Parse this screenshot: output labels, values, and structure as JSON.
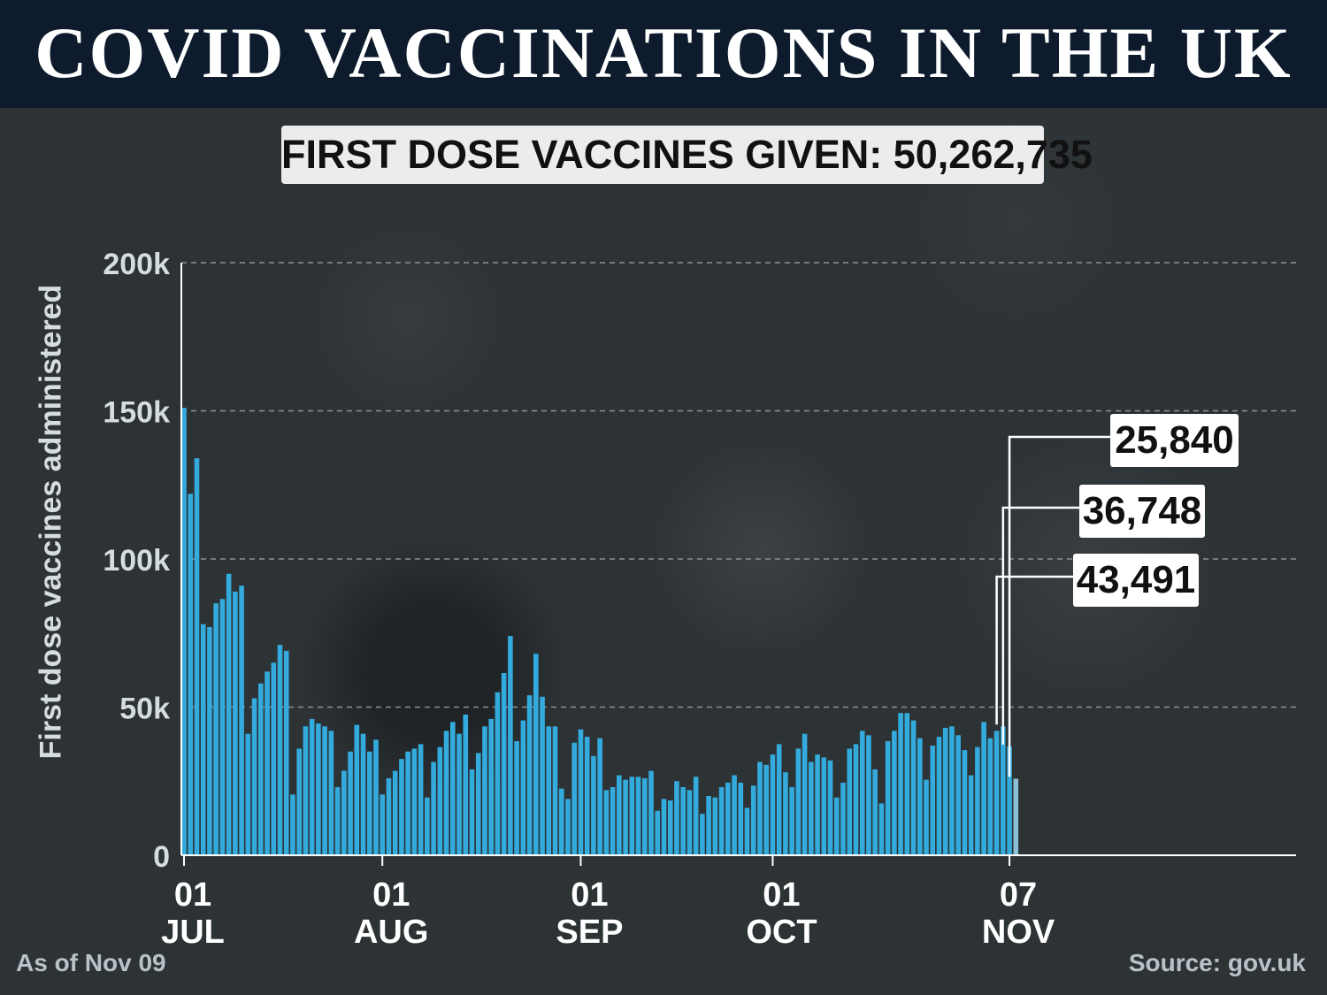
{
  "header": {
    "title": "COVID VACCINATIONS IN THE UK",
    "subtitle": "FIRST DOSE VACCINES GIVEN: 50,262,735"
  },
  "footer": {
    "as_of": "As of Nov 09",
    "source": "Source: gov.uk"
  },
  "colors": {
    "bar": "#33abdd",
    "bar_last": "#8bbfd6",
    "header_bg": "#0d1b2d",
    "gridline": "#8a9196",
    "axis": "#ffffff"
  },
  "chart_data": {
    "type": "bar",
    "ylabel": "First dose vaccines administered",
    "ylim": [
      0,
      200000
    ],
    "grid": true,
    "yticks": [
      {
        "value": 0,
        "label": "0"
      },
      {
        "value": 50000,
        "label": "50k"
      },
      {
        "value": 100000,
        "label": "100k"
      },
      {
        "value": 150000,
        "label": "150k"
      },
      {
        "value": 200000,
        "label": "200k"
      }
    ],
    "xticks": [
      {
        "date": "2021-07-01",
        "day": "01",
        "month": "JUL"
      },
      {
        "date": "2021-08-01",
        "day": "01",
        "month": "AUG"
      },
      {
        "date": "2021-09-01",
        "day": "01",
        "month": "SEP"
      },
      {
        "date": "2021-10-01",
        "day": "01",
        "month": "OCT"
      },
      {
        "date": "2021-11-07",
        "day": "07",
        "month": "NOV"
      }
    ],
    "series": [
      {
        "x_start": "2021-07-01",
        "x_end": "2021-11-07",
        "values": [
          151000,
          122000,
          134000,
          78000,
          77000,
          85000,
          86500,
          95000,
          89000,
          91000,
          41000,
          53000,
          58000,
          62000,
          65000,
          71000,
          69000,
          20500,
          36000,
          43500,
          46000,
          44500,
          43500,
          42000,
          23000,
          28500,
          35000,
          44000,
          41000,
          35000,
          39000,
          20500,
          26000,
          28500,
          32500,
          35000,
          36000,
          37500,
          19500,
          31500,
          36500,
          42000,
          45000,
          41000,
          47500,
          29000,
          34500,
          43500,
          46000,
          55000,
          61500,
          74000,
          38500,
          45500,
          54000,
          68000,
          53500,
          43500,
          43500,
          22500,
          19000,
          38000,
          42500,
          40000,
          33500,
          39500,
          22000,
          23000,
          27000,
          25500,
          26500,
          26500,
          26000,
          28500,
          15000,
          19000,
          18500,
          25000,
          23000,
          22000,
          26500,
          14000,
          20000,
          19500,
          23000,
          24500,
          27000,
          24500,
          16000,
          23500,
          31500,
          30500,
          34000,
          37500,
          28000,
          23000,
          36000,
          41000,
          31500,
          34000,
          33000,
          32000,
          19500,
          24500,
          36000,
          37500,
          42000,
          40500,
          29000,
          17500,
          38500,
          42000,
          48000,
          48000,
          45500,
          39500,
          25500,
          37000,
          40000,
          43000,
          43500,
          40500,
          35500,
          27000,
          36500,
          45000,
          39500,
          42000,
          43491,
          36748,
          25840
        ]
      }
    ],
    "callouts": [
      {
        "label": "25,840",
        "date": "2021-11-07",
        "value": 25840
      },
      {
        "label": "36,748",
        "date": "2021-11-06",
        "value": 36748
      },
      {
        "label": "43,491",
        "date": "2021-11-05",
        "value": 43491
      }
    ]
  }
}
